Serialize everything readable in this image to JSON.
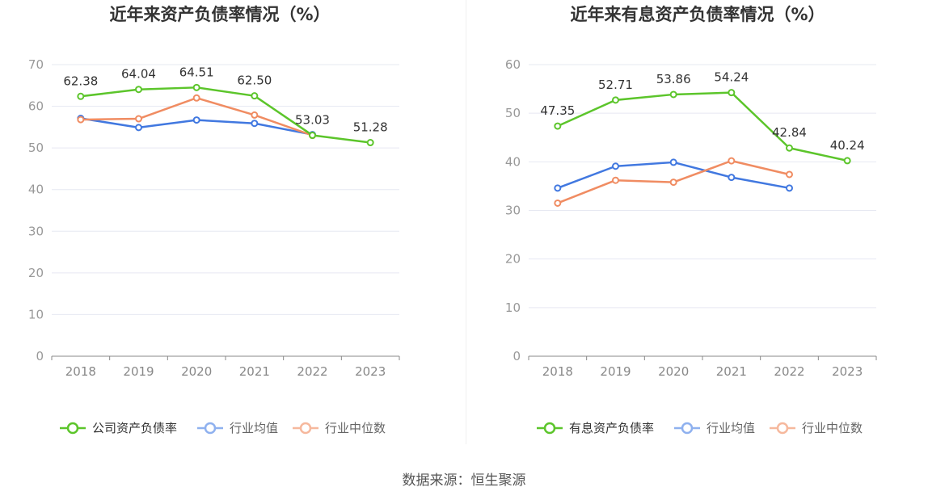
{
  "source_note": "数据来源：恒生聚源",
  "chart_data": [
    {
      "type": "line",
      "title": "近年来资产负债率情况（%）",
      "categories": [
        "2018",
        "2019",
        "2020",
        "2021",
        "2022",
        "2023"
      ],
      "ylim": [
        0,
        70
      ],
      "yticks": [
        0,
        10,
        20,
        30,
        40,
        50,
        60,
        70
      ],
      "grid": true,
      "legend_position": "bottom",
      "series": [
        {
          "name": "公司资产负债率",
          "color": "#5cc52b",
          "values": [
            62.38,
            64.04,
            64.51,
            62.5,
            53.03,
            51.28
          ],
          "labels": [
            "62.38",
            "64.04",
            "64.51",
            "62.50",
            "53.03",
            "51.28"
          ],
          "labeled": true
        },
        {
          "name": "行业均值",
          "color": "#4178e0",
          "values": [
            57.1,
            54.9,
            56.7,
            55.9,
            53.2,
            null
          ],
          "labeled": false
        },
        {
          "name": "行业中位数",
          "color": "#f08c62",
          "values": [
            56.8,
            57.0,
            62.0,
            57.9,
            53.0,
            null
          ],
          "labeled": false
        }
      ]
    },
    {
      "type": "line",
      "title": "近年来有息资产负债率情况（%）",
      "categories": [
        "2018",
        "2019",
        "2020",
        "2021",
        "2022",
        "2023"
      ],
      "ylim": [
        0,
        60
      ],
      "yticks": [
        0,
        10,
        20,
        30,
        40,
        50,
        60
      ],
      "grid": true,
      "legend_position": "bottom",
      "series": [
        {
          "name": "有息资产负债率",
          "color": "#5cc52b",
          "values": [
            47.35,
            52.71,
            53.86,
            54.24,
            42.84,
            40.24
          ],
          "labels": [
            "47.35",
            "52.71",
            "53.86",
            "54.24",
            "42.84",
            "40.24"
          ],
          "labeled": true
        },
        {
          "name": "行业均值",
          "color": "#4178e0",
          "values": [
            34.6,
            39.1,
            39.9,
            36.8,
            34.6,
            null
          ],
          "labeled": false
        },
        {
          "name": "行业中位数",
          "color": "#f08c62",
          "values": [
            31.5,
            36.2,
            35.8,
            40.2,
            37.4,
            null
          ],
          "labeled": false
        }
      ]
    }
  ]
}
